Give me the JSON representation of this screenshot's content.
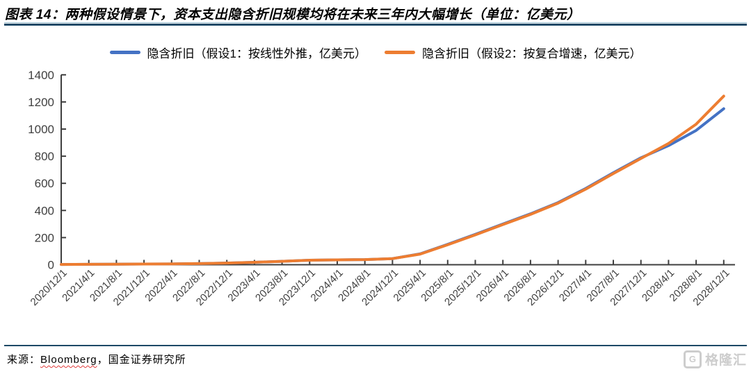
{
  "header": {
    "title": "图表 14：两种假设情景下，资本支出隐含折旧规模均将在未来三年内大幅增长（单位：亿美元）"
  },
  "chart_data": {
    "type": "line",
    "title": "",
    "xlabel": "",
    "ylabel": "",
    "ylim": [
      0,
      1400
    ],
    "ytick_step": 200,
    "grid": false,
    "legend_position": "top",
    "axis_color": "#3F3F3F",
    "tick_label_color": "#404040",
    "categories": [
      "2020/12/1",
      "2021/4/1",
      "2021/8/1",
      "2021/12/1",
      "2022/4/1",
      "2022/8/1",
      "2022/12/1",
      "2023/4/1",
      "2023/8/1",
      "2023/12/1",
      "2024/4/1",
      "2024/8/1",
      "2024/12/1",
      "2025/4/1",
      "2025/8/1",
      "2025/12/1",
      "2026/4/1",
      "2026/8/1",
      "2026/12/1",
      "2027/4/1",
      "2027/8/1",
      "2027/12/1",
      "2028/4/1",
      "2028/8/1",
      "2028/12/1"
    ],
    "series": [
      {
        "name": "隐含折旧（假设1：按线性外推，亿美元）",
        "color": "#4472C4",
        "values": [
          2,
          3,
          4,
          5,
          6,
          8,
          12,
          18,
          25,
          33,
          36,
          38,
          45,
          80,
          150,
          224,
          300,
          375,
          458,
          562,
          678,
          788,
          878,
          990,
          1150
        ]
      },
      {
        "name": "隐含折旧（假设2：按复合增速，亿美元）",
        "color": "#ED7D31",
        "values": [
          2,
          3,
          4,
          5,
          6,
          8,
          12,
          18,
          25,
          33,
          36,
          38,
          45,
          78,
          147,
          220,
          296,
          371,
          454,
          557,
          672,
          783,
          894,
          1036,
          1243
        ]
      }
    ]
  },
  "footer": {
    "source_prefix": "来源：",
    "source_bloomberg": "Bloomberg",
    "source_suffix": "，国金证券研究所",
    "logo": {
      "letter": "G",
      "text": "格隆汇"
    }
  }
}
